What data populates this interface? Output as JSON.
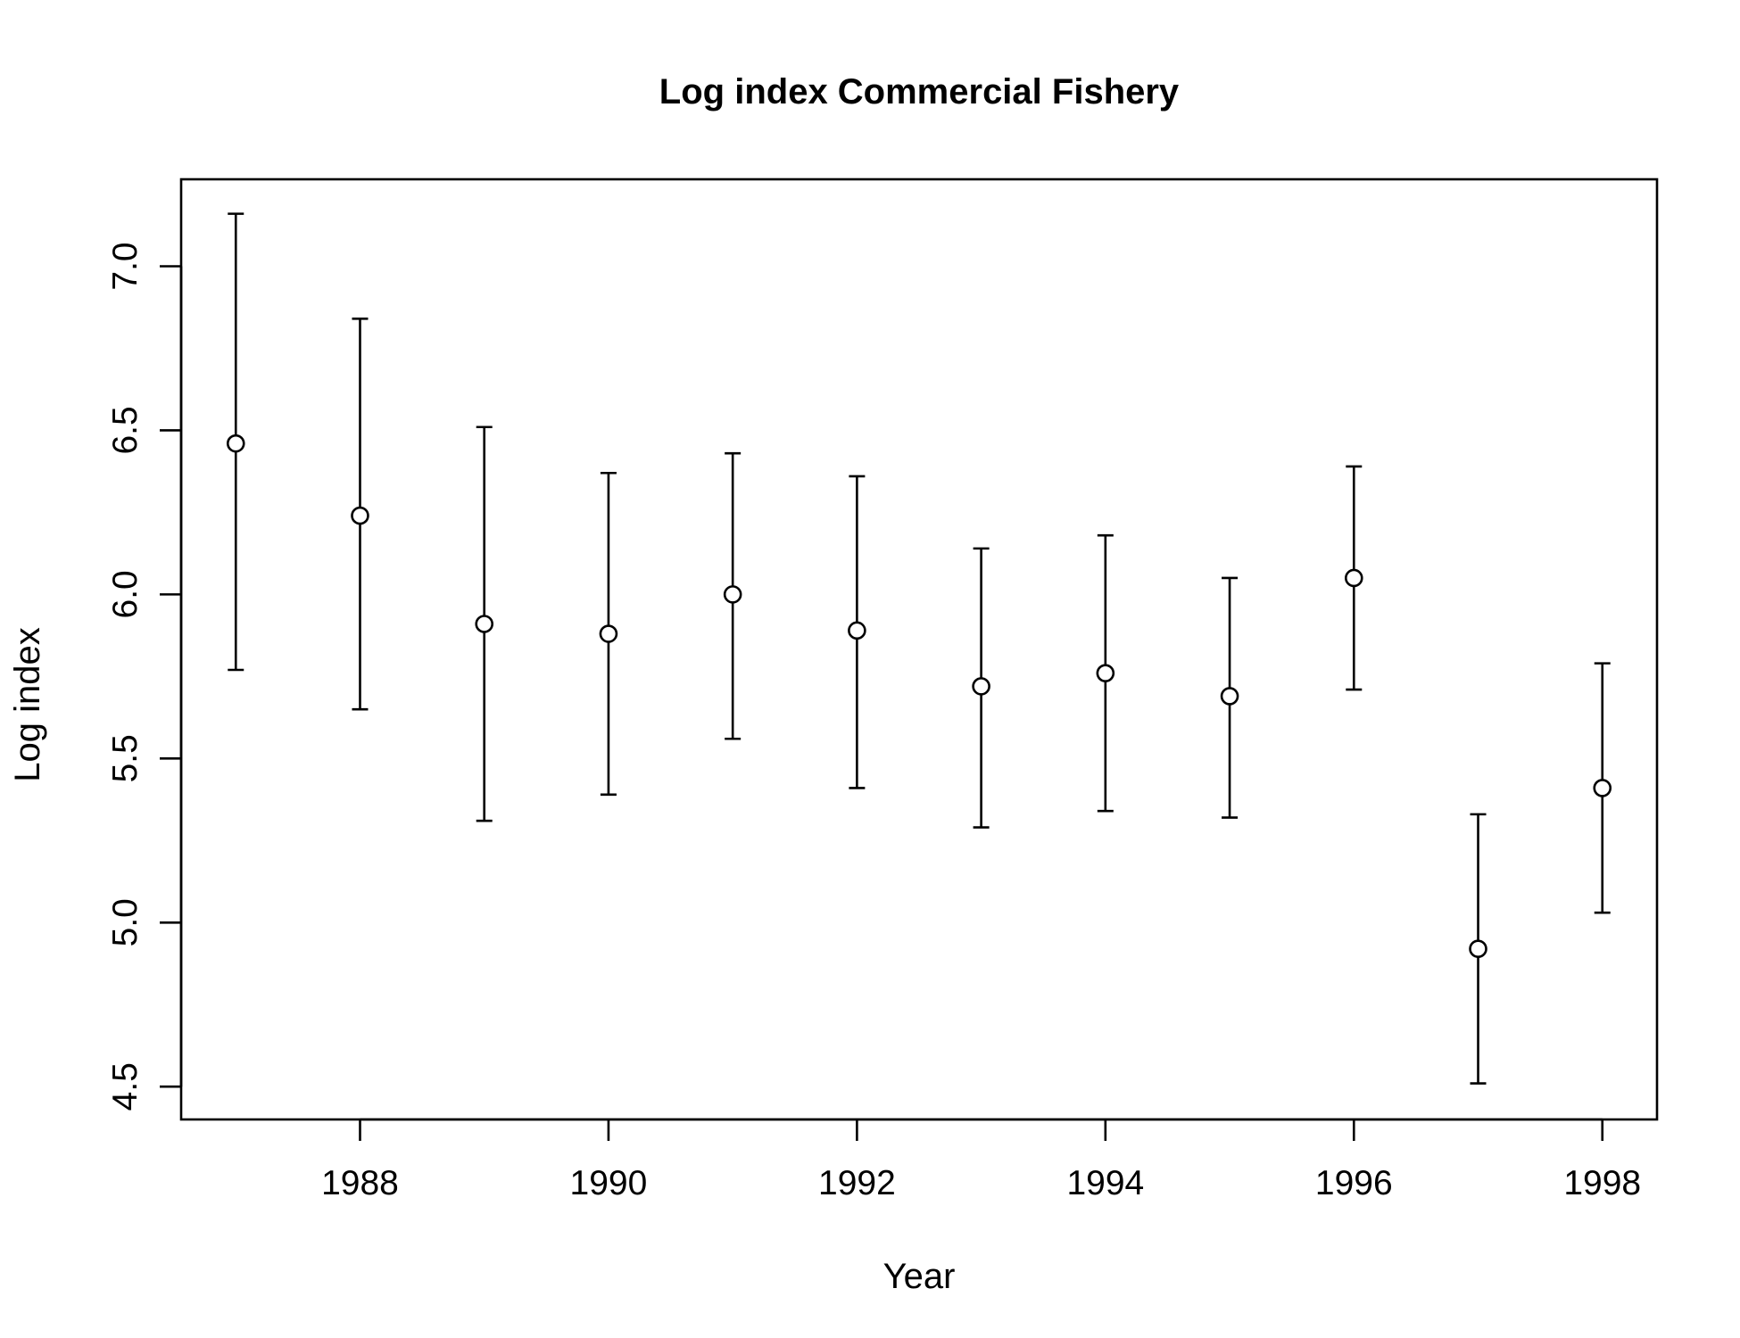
{
  "chart_data": {
    "type": "scatter",
    "title": "Log index Commercial Fishery",
    "xlabel": "Year",
    "ylabel": "Log index",
    "xlim": [
      1986.56,
      1998.44
    ],
    "ylim": [
      4.4,
      7.265
    ],
    "x_ticks": [
      1988,
      1990,
      1992,
      1994,
      1996,
      1998
    ],
    "y_ticks": [
      4.5,
      5.0,
      5.5,
      6.0,
      6.5,
      7.0
    ],
    "y_tick_labels": [
      "4.5",
      "5.0",
      "5.5",
      "6.0",
      "6.5",
      "7.0"
    ],
    "grid": false,
    "legend": "none",
    "series": [
      {
        "x": [
          1987,
          1988,
          1989,
          1990,
          1991,
          1992,
          1993,
          1994,
          1995,
          1996,
          1997,
          1998
        ],
        "y": [
          6.46,
          6.24,
          5.91,
          5.88,
          6.0,
          5.89,
          5.72,
          5.76,
          5.69,
          6.05,
          4.92,
          5.41
        ],
        "lower": [
          5.77,
          5.65,
          5.31,
          5.39,
          5.56,
          5.41,
          5.29,
          5.34,
          5.32,
          5.71,
          4.51,
          5.03
        ],
        "upper": [
          7.16,
          6.84,
          6.51,
          6.37,
          6.43,
          6.36,
          6.14,
          6.18,
          6.05,
          6.39,
          5.33,
          5.79
        ]
      }
    ]
  }
}
